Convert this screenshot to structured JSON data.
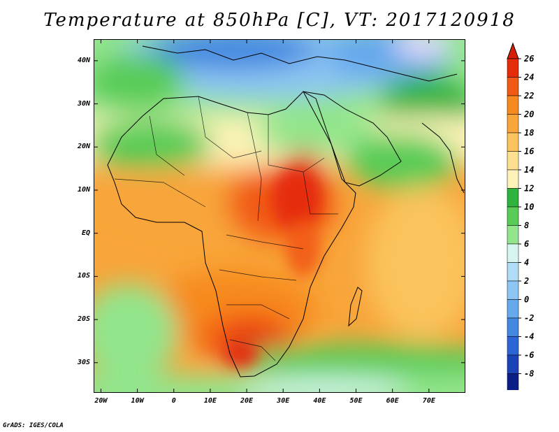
{
  "title": "Temperature at 850hPa [C], VT: 2017120918",
  "credit": "GrADS: IGES/COLA",
  "map": {
    "projection": "lat-lon",
    "lon_range": [
      -22,
      80
    ],
    "lat_range": [
      -37,
      45
    ],
    "lon_ticks": [
      {
        "lon": -20,
        "label": "20W"
      },
      {
        "lon": -10,
        "label": "10W"
      },
      {
        "lon": 0,
        "label": "0"
      },
      {
        "lon": 10,
        "label": "10E"
      },
      {
        "lon": 20,
        "label": "20E"
      },
      {
        "lon": 30,
        "label": "30E"
      },
      {
        "lon": 40,
        "label": "40E"
      },
      {
        "lon": 50,
        "label": "50E"
      },
      {
        "lon": 60,
        "label": "60E"
      },
      {
        "lon": 70,
        "label": "70E"
      }
    ],
    "lat_ticks": [
      {
        "lat": 40,
        "label": "40N"
      },
      {
        "lat": 30,
        "label": "30N"
      },
      {
        "lat": 20,
        "label": "20N"
      },
      {
        "lat": 10,
        "label": "10N"
      },
      {
        "lat": 0,
        "label": "EQ"
      },
      {
        "lat": -10,
        "label": "10S"
      },
      {
        "lat": -20,
        "label": "20S"
      },
      {
        "lat": -30,
        "label": "30S"
      }
    ]
  },
  "colorbar": {
    "labels": [
      "26",
      "24",
      "22",
      "20",
      "18",
      "16",
      "14",
      "12",
      "10",
      "8",
      "6",
      "4",
      "2",
      "0",
      "-2",
      "-4",
      "-6",
      "-8"
    ],
    "colors": [
      "#e52b07",
      "#f25a14",
      "#f78a1e",
      "#f8a53a",
      "#fbc35c",
      "#fde08f",
      "#fdf3b8",
      "#2eb43e",
      "#58cc57",
      "#92e58c",
      "#d5f5ee",
      "#b1dcf5",
      "#8dc5f3",
      "#66a9ec",
      "#4388e0",
      "#2c66d6",
      "#1a43b8",
      "#0a1f86"
    ],
    "top_arrow_color": "#d81e06",
    "bottom_arrow_color": "#e2dcfa"
  }
}
